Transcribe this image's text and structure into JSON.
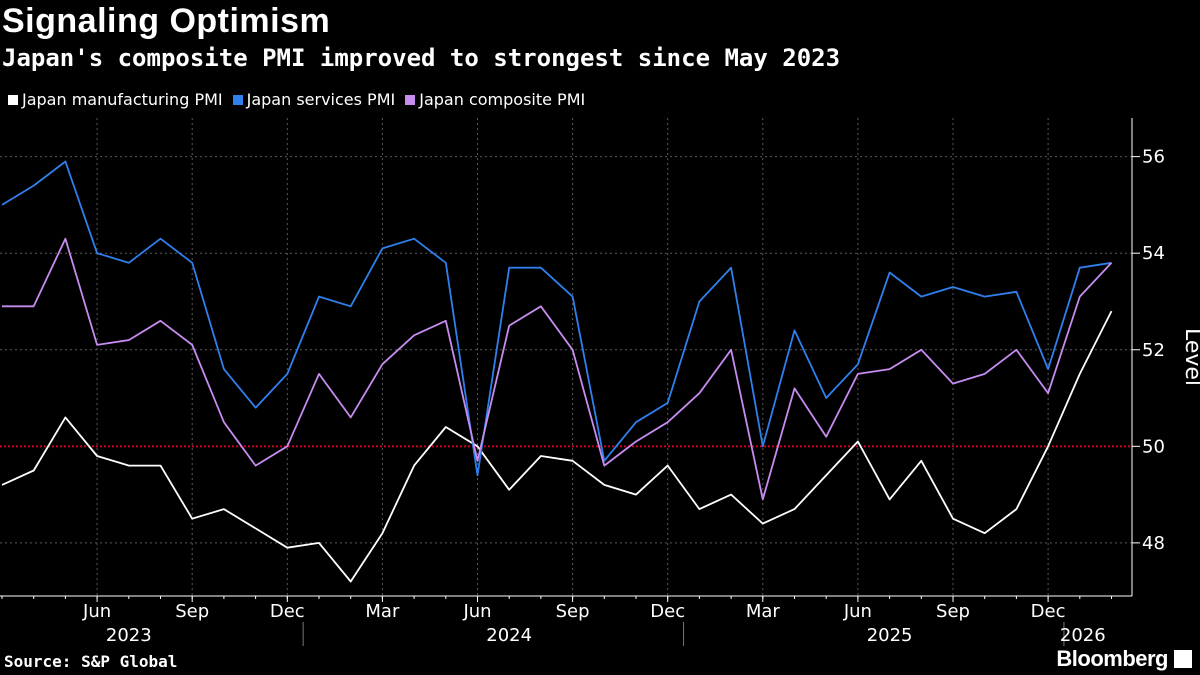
{
  "header": {
    "title": "Signaling Optimism",
    "subtitle": "Japan's composite PMI improved to strongest since May 2023"
  },
  "legend": [
    {
      "label": "Japan manufacturing PMI",
      "color": "#ffffff"
    },
    {
      "label": "Japan services PMI",
      "color": "#2f80ed"
    },
    {
      "label": "Japan composite PMI",
      "color": "#c68cf0"
    }
  ],
  "footer": {
    "source": "Source: S&P Global",
    "brand": "Bloomberg"
  },
  "chart_data": {
    "type": "line",
    "x_start": "2023-03",
    "x": [
      "2023-03",
      "2023-04",
      "2023-05",
      "2023-06",
      "2023-07",
      "2023-08",
      "2023-09",
      "2023-10",
      "2023-11",
      "2023-12",
      "2024-01",
      "2024-02",
      "2024-03",
      "2024-04",
      "2024-05",
      "2024-06",
      "2024-07",
      "2024-08",
      "2024-09",
      "2024-10",
      "2024-11",
      "2024-12",
      "2025-01",
      "2025-02",
      "2025-03",
      "2025-04",
      "2025-05",
      "2025-06",
      "2025-07",
      "2025-08",
      "2025-09",
      "2025-10",
      "2025-11",
      "2025-12",
      "2026-01",
      "2026-02"
    ],
    "series": [
      {
        "name": "Japan manufacturing PMI",
        "color": "#ffffff",
        "values": [
          49.2,
          49.5,
          50.6,
          49.8,
          49.6,
          49.6,
          48.5,
          48.7,
          48.3,
          47.9,
          48.0,
          47.2,
          48.2,
          49.6,
          50.4,
          50.0,
          49.1,
          49.8,
          49.7,
          49.2,
          49.0,
          49.6,
          48.7,
          49.0,
          48.4,
          48.7,
          49.4,
          50.1,
          48.9,
          49.7,
          48.5,
          48.2,
          48.7,
          50.0,
          51.5,
          52.8
        ]
      },
      {
        "name": "Japan services PMI",
        "color": "#2f80ed",
        "values": [
          55.0,
          55.4,
          55.9,
          54.0,
          53.8,
          54.3,
          53.8,
          51.6,
          50.8,
          51.5,
          53.1,
          52.9,
          54.1,
          54.3,
          53.8,
          49.4,
          53.7,
          53.7,
          53.1,
          49.7,
          50.5,
          50.9,
          53.0,
          53.7,
          50.0,
          52.4,
          51.0,
          51.7,
          53.6,
          53.1,
          53.3,
          53.1,
          53.2,
          51.6,
          53.7,
          53.8
        ]
      },
      {
        "name": "Japan composite PMI",
        "color": "#c68cf0",
        "values": [
          52.9,
          52.9,
          54.3,
          52.1,
          52.2,
          52.6,
          52.1,
          50.5,
          49.6,
          50.0,
          51.5,
          50.6,
          51.7,
          52.3,
          52.6,
          49.7,
          52.5,
          52.9,
          52.0,
          49.6,
          50.1,
          50.5,
          51.1,
          52.0,
          48.9,
          51.2,
          50.2,
          51.5,
          51.6,
          52.0,
          51.3,
          51.5,
          52.0,
          51.1,
          53.1,
          53.8
        ]
      }
    ],
    "reference_line": {
      "y": 50,
      "color": "#d0021b",
      "style": "dotted"
    },
    "ylim": [
      46.9,
      56.8
    ],
    "yticks": [
      48,
      50,
      52,
      54,
      56
    ],
    "ylabel": "Level",
    "ylabel_position": "right",
    "month_ticks": [
      {
        "month": "2023-06",
        "label": "Jun"
      },
      {
        "month": "2023-09",
        "label": "Sep"
      },
      {
        "month": "2023-12",
        "label": "Dec"
      },
      {
        "month": "2024-03",
        "label": "Mar"
      },
      {
        "month": "2024-06",
        "label": "Jun"
      },
      {
        "month": "2024-09",
        "label": "Sep"
      },
      {
        "month": "2024-12",
        "label": "Dec"
      },
      {
        "month": "2025-03",
        "label": "Mar"
      },
      {
        "month": "2025-06",
        "label": "Jun"
      },
      {
        "month": "2025-09",
        "label": "Sep"
      },
      {
        "month": "2025-12",
        "label": "Dec"
      }
    ],
    "year_labels": [
      {
        "year": "2023",
        "center_month": "2023-07"
      },
      {
        "year": "2024",
        "center_month": "2024-07"
      },
      {
        "year": "2025",
        "center_month": "2025-07"
      },
      {
        "year": "2026",
        "center_month": "2026-01"
      }
    ],
    "year_separators": [
      "2024-01",
      "2025-01",
      "2026-01"
    ],
    "grid": true,
    "legend_position": "top-left"
  }
}
